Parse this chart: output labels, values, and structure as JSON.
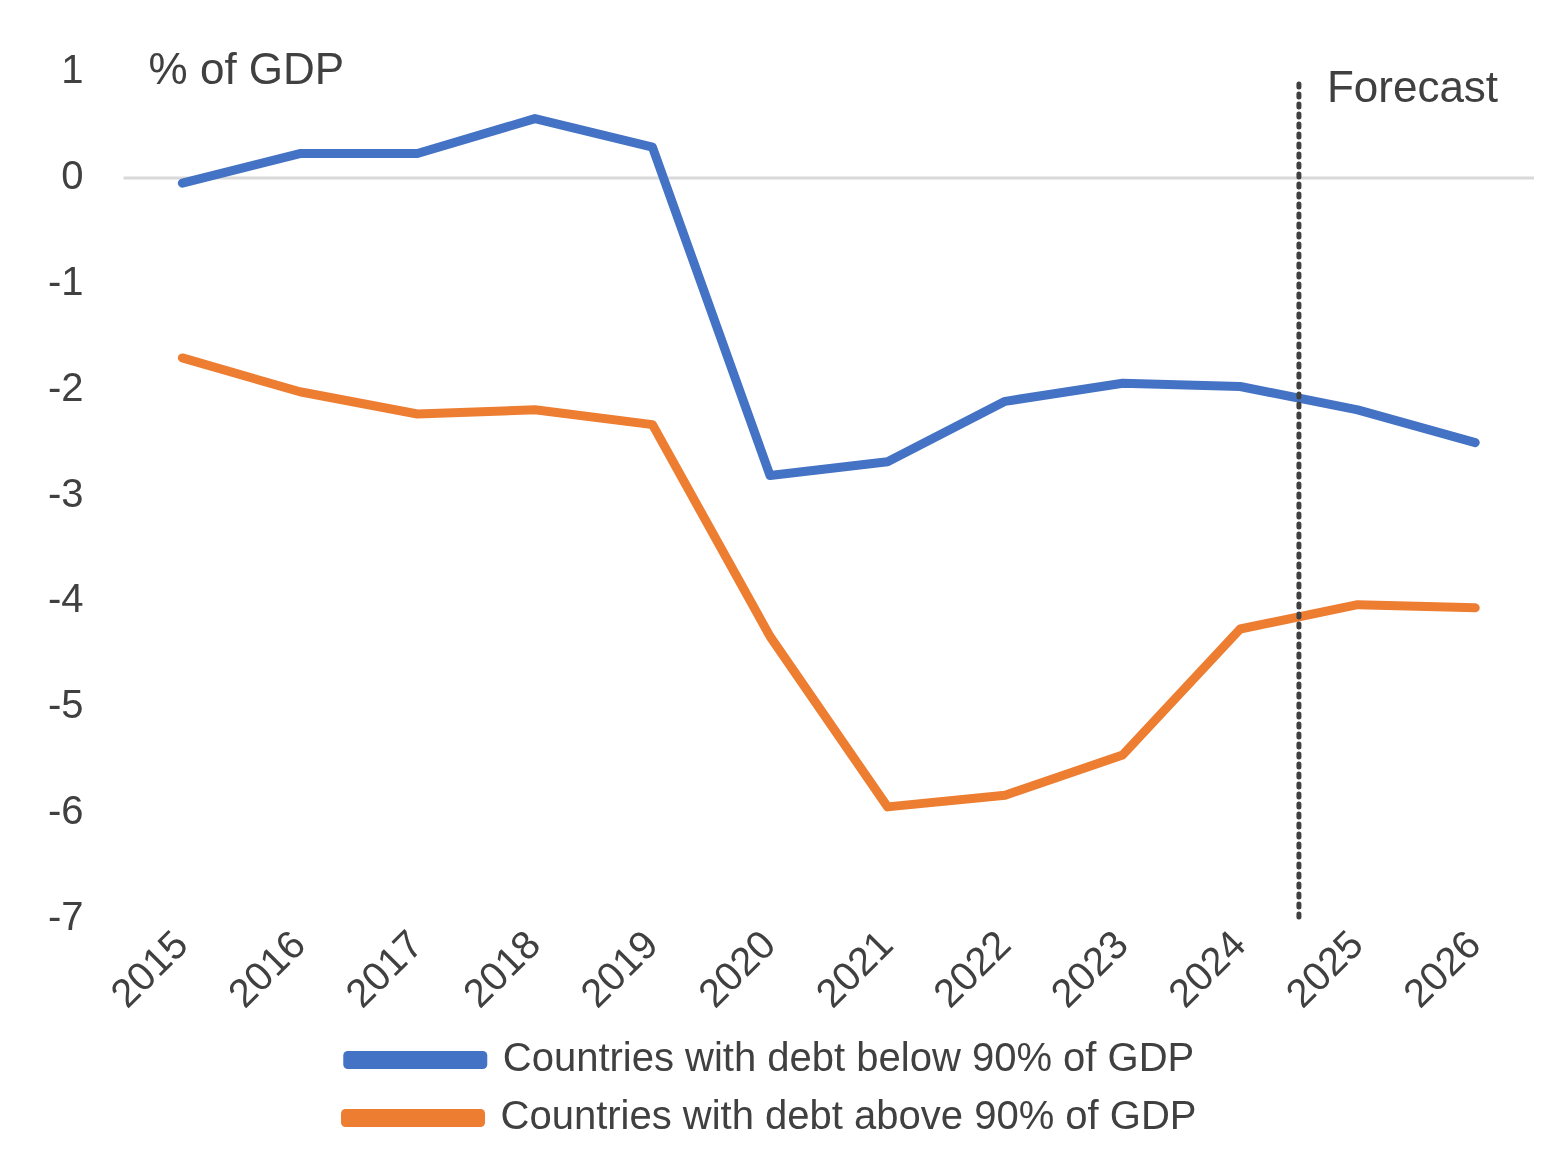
{
  "chart_data": {
    "type": "line",
    "ylabel": "% of GDP",
    "x": [
      2015,
      2016,
      2017,
      2018,
      2019,
      2020,
      2021,
      2022,
      2023,
      2024,
      2025,
      2026
    ],
    "xlim": [
      2014.5,
      2026.5
    ],
    "xticks": [
      2015,
      2016,
      2017,
      2018,
      2019,
      2020,
      2021,
      2022,
      2023,
      2024,
      2025,
      2026
    ],
    "ylim": [
      -7,
      1
    ],
    "yticks": [
      -7,
      -6,
      -5,
      -4,
      -3,
      -2,
      -1,
      0,
      1
    ],
    "series": [
      {
        "name": "Countries with debt below 90% of GDP",
        "color": "#4472c4",
        "values": [
          -0.05,
          0.23,
          0.23,
          0.56,
          0.29,
          -2.81,
          -2.68,
          -2.11,
          -1.94,
          -1.97,
          -2.19,
          -2.5
        ]
      },
      {
        "name": "Countries with debt above 90% of GDP",
        "color": "#ed7d31",
        "values": [
          -1.7,
          -2.02,
          -2.23,
          -2.19,
          -2.33,
          -4.33,
          -5.94,
          -5.83,
          -5.45,
          -4.26,
          -4.03,
          -4.06
        ]
      }
    ],
    "ref_lines": [
      {
        "axis": "y",
        "value": 0,
        "color": "#d9d9d9",
        "line_style": "solid"
      },
      {
        "axis": "x",
        "value": 2024.5,
        "label": "Forecast",
        "color": "#404040",
        "line_style": "dotted"
      }
    ],
    "grid": false,
    "legend": "bottom",
    "marker": "none",
    "line_style": "solid"
  }
}
